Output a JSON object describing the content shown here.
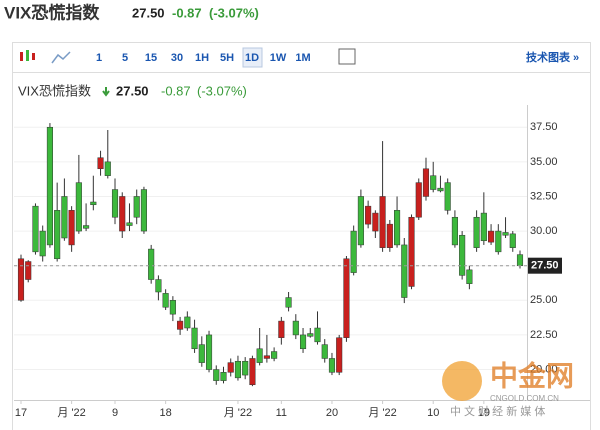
{
  "header": {
    "title": "VIX恐慌指数",
    "price": "27.50",
    "change": "-0.87",
    "change_pct": "(-3.07%)"
  },
  "toolbar": {
    "intervals": [
      "1",
      "5",
      "15",
      "30",
      "1H",
      "5H",
      "1D",
      "1W",
      "1M"
    ],
    "selected": "1D",
    "tech_chart": "技术图表 »"
  },
  "watermark": {
    "name": "中金网",
    "site": "CNGOLD.COM.CN",
    "slogan": "中 文 财 经 新 媒 体"
  },
  "chart_data": {
    "type": "candlestick",
    "up_color": "#c8201e",
    "down_color": "#3cb83c",
    "grid": true,
    "categories": [
      "17",
      null,
      null,
      null,
      null,
      null,
      null,
      "月 '22",
      null,
      null,
      null,
      null,
      null,
      "9",
      null,
      null,
      null,
      null,
      null,
      null,
      "18",
      null,
      null,
      null,
      null,
      null,
      null,
      null,
      null,
      null,
      "月 '22",
      null,
      null,
      null,
      null,
      null,
      "11",
      null,
      null,
      null,
      null,
      null,
      null,
      "20",
      null,
      null,
      null,
      null,
      null,
      null,
      "月 '22",
      null,
      null,
      null,
      null,
      null,
      null,
      "10",
      null,
      null,
      null,
      null,
      null,
      null,
      "19",
      null,
      null,
      null,
      null,
      null
    ],
    "open": [
      25.0,
      26.5,
      31.8,
      30.0,
      37.5,
      31.5,
      32.5,
      29.0,
      33.5,
      30.4,
      32.1,
      34.5,
      35.0,
      33.0,
      30.0,
      30.6,
      32.5,
      33.0,
      28.7,
      26.5,
      25.5,
      25.0,
      22.9,
      23.8,
      23.0,
      21.8,
      22.5,
      20.0,
      19.8,
      19.8,
      20.6,
      20.6,
      18.9,
      21.5,
      20.8,
      21.3,
      22.3,
      25.2,
      23.5,
      22.5,
      22.6,
      23.0,
      21.8,
      20.8,
      19.8,
      22.3,
      30.0,
      32.5,
      30.5,
      30.0,
      28.8,
      28.8,
      31.5,
      29.0,
      26.0,
      31.0,
      32.5,
      34.0,
      33.1,
      33.5,
      31.0,
      29.7,
      27.2,
      31.0,
      31.3,
      29.2,
      30.0,
      29.9,
      29.8,
      28.3
    ],
    "high": [
      28.3,
      27.9,
      32.0,
      30.4,
      37.8,
      33.5,
      33.8,
      31.8,
      35.5,
      32.0,
      34.0,
      35.8,
      37.3,
      33.8,
      32.8,
      32.0,
      33.0,
      33.2,
      29.0,
      26.8,
      25.8,
      25.3,
      23.8,
      24.2,
      23.6,
      22.4,
      22.8,
      20.3,
      20.2,
      20.8,
      21.0,
      20.9,
      21.0,
      23.0,
      22.5,
      21.6,
      23.8,
      25.6,
      24.0,
      23.0,
      23.0,
      24.2,
      22.2,
      21.2,
      22.5,
      28.2,
      30.4,
      33.0,
      32.2,
      31.5,
      36.5,
      30.8,
      32.5,
      29.5,
      31.2,
      33.8,
      35.3,
      35.0,
      34.0,
      33.8,
      31.5,
      30.0,
      27.5,
      31.5,
      32.8,
      30.5,
      30.5,
      31.0,
      30.0,
      28.6
    ],
    "low": [
      24.9,
      26.3,
      28.3,
      27.8,
      28.8,
      27.8,
      29.3,
      28.5,
      29.8,
      30.0,
      31.5,
      34.0,
      33.8,
      30.5,
      29.5,
      30.0,
      30.5,
      29.8,
      26.2,
      25.0,
      24.3,
      23.5,
      22.5,
      22.8,
      21.2,
      20.2,
      19.8,
      18.9,
      19.0,
      19.5,
      19.2,
      19.3,
      18.8,
      20.3,
      20.5,
      20.6,
      21.8,
      24.2,
      22.2,
      21.2,
      22.3,
      21.8,
      20.5,
      19.6,
      19.6,
      22.0,
      26.8,
      28.8,
      30.2,
      29.5,
      28.5,
      28.5,
      28.8,
      24.8,
      25.8,
      30.8,
      32.2,
      32.8,
      32.8,
      31.2,
      28.8,
      26.5,
      25.8,
      28.5,
      29.0,
      29.0,
      28.3,
      29.5,
      28.5,
      27.3
    ],
    "close": [
      28.0,
      27.8,
      28.5,
      28.2,
      29.0,
      28.0,
      29.5,
      31.5,
      30.0,
      30.2,
      31.9,
      35.3,
      34.0,
      31.0,
      32.5,
      30.4,
      31.0,
      30.0,
      26.5,
      25.6,
      24.5,
      24.0,
      23.5,
      23.0,
      21.5,
      20.5,
      20.0,
      19.2,
      19.2,
      20.5,
      19.4,
      19.6,
      20.8,
      20.5,
      21.0,
      20.8,
      23.5,
      24.5,
      22.5,
      21.5,
      22.4,
      22.0,
      20.8,
      19.8,
      22.3,
      28.0,
      27.0,
      29.0,
      31.8,
      31.3,
      32.5,
      30.5,
      29.0,
      25.2,
      31.0,
      33.5,
      34.5,
      33.0,
      32.9,
      31.5,
      29.0,
      26.8,
      26.2,
      28.8,
      29.3,
      30.0,
      28.5,
      29.7,
      28.8,
      27.5
    ],
    "ylim": [
      17.8,
      38.6
    ],
    "yticks": [
      {
        "value": 20,
        "label": "20.00"
      },
      {
        "value": 22.5,
        "label": "22.50"
      },
      {
        "value": 25,
        "label": "25.00"
      },
      {
        "value": 27.5,
        "label": "27.50"
      },
      {
        "value": 30,
        "label": "30.00"
      },
      {
        "value": 32.5,
        "label": "32.50"
      },
      {
        "value": 35,
        "label": "35.00"
      },
      {
        "value": 37.5,
        "label": "37.50"
      }
    ],
    "last_price": {
      "value": 27.5,
      "label": "27.50"
    }
  }
}
